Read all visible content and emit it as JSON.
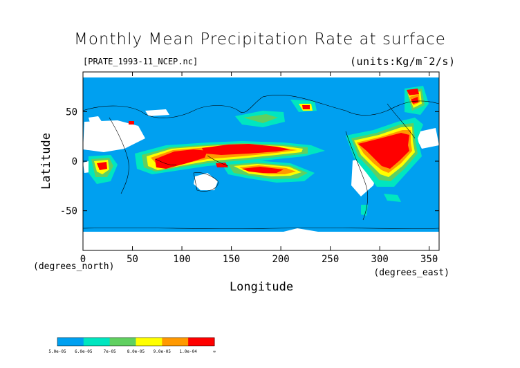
{
  "title": "Monthly Mean Precipitation Rate at surface",
  "file_label": "[PRATE_1993-11_NCEP.nc]",
  "units_label": "(units:Kg/m¯2/s)",
  "x_axis": {
    "label": "Longitude",
    "unit_note": "(degrees_east)",
    "ticks": [
      0,
      50,
      100,
      150,
      200,
      250,
      300,
      350
    ],
    "range": [
      0,
      360
    ]
  },
  "y_axis": {
    "label": "Latitude",
    "unit_note": "(degrees_north)",
    "ticks": [
      50,
      0,
      -50
    ],
    "range": [
      -90,
      90
    ]
  },
  "colors": {
    "ocean_base": "#00a0f0",
    "land_no_data": "#ffffff",
    "level_1": "#00e6c0",
    "level_2": "#60d060",
    "level_3": "#ffff00",
    "level_4": "#ff9900",
    "level_5": "#ff0000"
  },
  "colorbar": {
    "labels": [
      "5.0e-05",
      "6.0e-05",
      "7e-05",
      "8.0e-05",
      "9.0e-05",
      "1.0e-04",
      "∞"
    ],
    "colors": [
      "#00a0f0",
      "#00e6c0",
      "#60d060",
      "#ffff00",
      "#ff9900",
      "#ff0000"
    ]
  }
}
